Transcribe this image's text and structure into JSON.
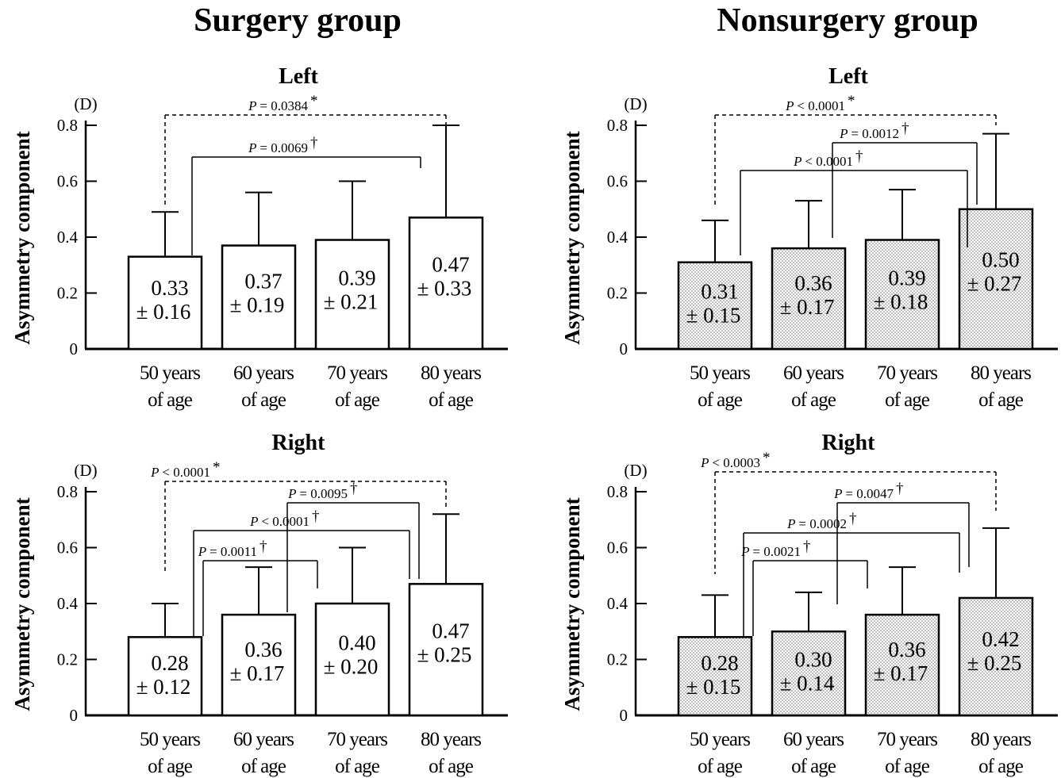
{
  "figure": {
    "surgery_title": "Surgery group",
    "nonsurgery_title": "Nonsurgery group"
  },
  "chart_data": [
    {
      "type": "bar",
      "group": "Surgery group",
      "title": "Left",
      "ylabel": "Asymmetry component",
      "unit": "(D)",
      "ylim": [
        0,
        0.8
      ],
      "yticks": [
        "0",
        "0.2",
        "0.4",
        "0.6",
        "0.8"
      ],
      "categories": [
        "50 years of age",
        "60 years of age",
        "70 years of age",
        "80 years of age"
      ],
      "category_lines": [
        [
          "50 years",
          "of age"
        ],
        [
          "60 years",
          "of age"
        ],
        [
          "70 years",
          "of age"
        ],
        [
          "80 years",
          "of age"
        ]
      ],
      "values": [
        0.33,
        0.37,
        0.39,
        0.47
      ],
      "sd": [
        0.16,
        0.19,
        0.21,
        0.33
      ],
      "labels": [
        [
          "0.33",
          "± 0.16"
        ],
        [
          "0.37",
          "± 0.19"
        ],
        [
          "0.39",
          "± 0.21"
        ],
        [
          "0.47",
          "± 0.33"
        ]
      ],
      "fill": "white",
      "comparisons": [
        {
          "from": 0,
          "to": 3,
          "p": "= 0.0384",
          "mark": "*",
          "dashed": true
        },
        {
          "from": 0,
          "to": 3,
          "p": "= 0.0069",
          "mark": "†",
          "dashed": false
        }
      ]
    },
    {
      "type": "bar",
      "group": "Nonsurgery group",
      "title": "Left",
      "ylabel": "Asymmetry component",
      "unit": "(D)",
      "ylim": [
        0,
        0.8
      ],
      "yticks": [
        "0",
        "0.2",
        "0.4",
        "0.6",
        "0.8"
      ],
      "categories": [
        "50 years of age",
        "60 years of age",
        "70 years of age",
        "80 years of age"
      ],
      "category_lines": [
        [
          "50 years",
          "of age"
        ],
        [
          "60 years",
          "of age"
        ],
        [
          "70 years",
          "of age"
        ],
        [
          "80 years",
          "of age"
        ]
      ],
      "values": [
        0.31,
        0.36,
        0.39,
        0.5
      ],
      "sd": [
        0.15,
        0.17,
        0.18,
        0.27
      ],
      "labels": [
        [
          "0.31",
          "± 0.15"
        ],
        [
          "0.36",
          "± 0.17"
        ],
        [
          "0.39",
          "± 0.18"
        ],
        [
          "0.50",
          "± 0.27"
        ]
      ],
      "fill": "dotted",
      "comparisons": [
        {
          "from": 0,
          "to": 3,
          "p": "< 0.0001",
          "mark": "*",
          "dashed": true
        },
        {
          "from": 1,
          "to": 3,
          "p": "= 0.0012",
          "mark": "†",
          "dashed": false
        },
        {
          "from": 0,
          "to": 3,
          "p": "< 0.0001",
          "mark": "†",
          "dashed": false
        }
      ]
    },
    {
      "type": "bar",
      "group": "Surgery group",
      "title": "Right",
      "ylabel": "Asymmetry component",
      "unit": "(D)",
      "ylim": [
        0,
        0.8
      ],
      "yticks": [
        "0",
        "0.2",
        "0.4",
        "0.6",
        "0.8"
      ],
      "categories": [
        "50 years of age",
        "60 years of age",
        "70 years of age",
        "80 years of age"
      ],
      "category_lines": [
        [
          "50 years",
          "of age"
        ],
        [
          "60 years",
          "of age"
        ],
        [
          "70 years",
          "of age"
        ],
        [
          "80 years",
          "of age"
        ]
      ],
      "values": [
        0.28,
        0.36,
        0.4,
        0.47
      ],
      "sd": [
        0.12,
        0.17,
        0.2,
        0.25
      ],
      "labels": [
        [
          "0.28",
          "± 0.12"
        ],
        [
          "0.36",
          "± 0.17"
        ],
        [
          "0.40",
          "± 0.20"
        ],
        [
          "0.47",
          "± 0.25"
        ]
      ],
      "fill": "white",
      "comparisons": [
        {
          "from": 0,
          "to": 3,
          "p": "< 0.0001",
          "mark": "*",
          "dashed": true
        },
        {
          "from": 1,
          "to": 3,
          "p": "= 0.0095",
          "mark": "†",
          "dashed": false
        },
        {
          "from": 0,
          "to": 3,
          "p": "< 0.0001",
          "mark": "†",
          "dashed": false
        },
        {
          "from": 0,
          "to": 2,
          "p": "= 0.0011",
          "mark": "†",
          "dashed": false
        }
      ]
    },
    {
      "type": "bar",
      "group": "Nonsurgery group",
      "title": "Right",
      "ylabel": "Asymmetry component",
      "unit": "(D)",
      "ylim": [
        0,
        0.8
      ],
      "yticks": [
        "0",
        "0.2",
        "0.4",
        "0.6",
        "0.8"
      ],
      "categories": [
        "50 years of age",
        "60 years of age",
        "70 years of age",
        "80 years of age"
      ],
      "category_lines": [
        [
          "50 years",
          "of age"
        ],
        [
          "60 years",
          "of age"
        ],
        [
          "70 years",
          "of age"
        ],
        [
          "80 years",
          "of age"
        ]
      ],
      "values": [
        0.28,
        0.3,
        0.36,
        0.42
      ],
      "sd": [
        0.15,
        0.14,
        0.17,
        0.25
      ],
      "labels": [
        [
          "0.28",
          "± 0.15"
        ],
        [
          "0.30",
          "± 0.14"
        ],
        [
          "0.36",
          "± 0.17"
        ],
        [
          "0.42",
          "± 0.25"
        ]
      ],
      "fill": "dotted",
      "comparisons": [
        {
          "from": 0,
          "to": 3,
          "p": "< 0.0003",
          "mark": "*",
          "dashed": true
        },
        {
          "from": 1,
          "to": 3,
          "p": "= 0.0047",
          "mark": "†",
          "dashed": false
        },
        {
          "from": 0,
          "to": 3,
          "p": "= 0.0002",
          "mark": "†",
          "dashed": false
        },
        {
          "from": 0,
          "to": 2,
          "p": "= 0.0021",
          "mark": "†",
          "dashed": false
        }
      ]
    }
  ]
}
